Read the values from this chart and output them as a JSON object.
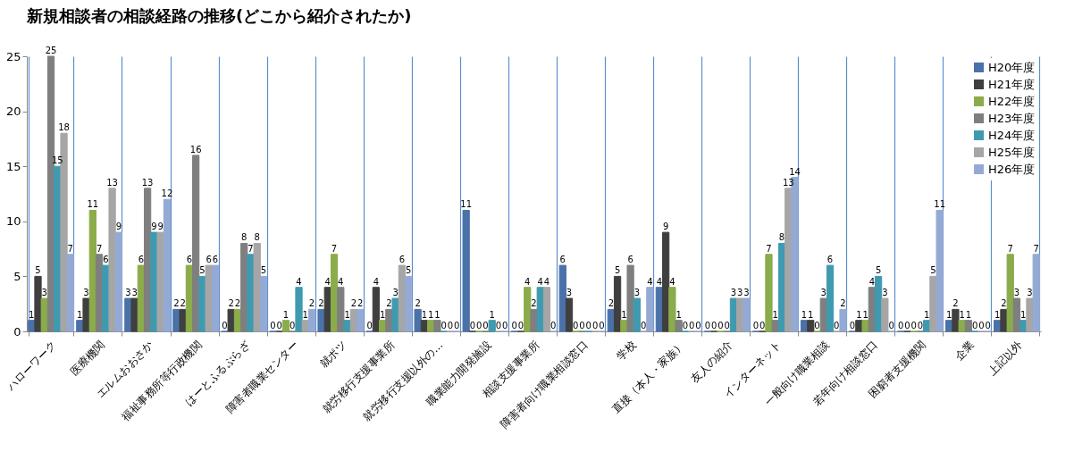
{
  "chart_data": {
    "type": "bar",
    "title": "新規相談者の相談経路の推移(どこから紹介されたか)",
    "categories": [
      "ハローワーク",
      "医療機関",
      "エルムおおさか",
      "福祉事務所等行政機関",
      "はーとふるぷらざ",
      "障害者職業センター",
      "就ポツ",
      "就労移行支援事業所",
      "就労移行支援以外の…",
      "職業能力開発施設",
      "相談支援事業所",
      "障害者向け職業相談窓口",
      "学校",
      "直接（本人・家族）",
      "友人の紹介",
      "インターネット",
      "一般向け職業相談",
      "若年向け相談窓口",
      "困窮者支援機関",
      "企業",
      "上記以外"
    ],
    "series": [
      {
        "name": "H20年度",
        "color": "#4a72a8",
        "values": [
          1,
          1,
          3,
          2,
          0,
          0,
          2,
          0,
          2,
          11,
          0,
          6,
          2,
          4,
          0,
          0,
          1,
          0,
          0,
          1,
          1
        ]
      },
      {
        "name": "H21年度",
        "color": "#3f3f3f",
        "values": [
          5,
          3,
          3,
          2,
          2,
          0,
          4,
          4,
          1,
          0,
          0,
          3,
          5,
          9,
          0,
          0,
          1,
          1,
          0,
          2,
          2
        ]
      },
      {
        "name": "H22年度",
        "color": "#8aac4a",
        "values": [
          3,
          11,
          6,
          6,
          2,
          1,
          7,
          1,
          1,
          0,
          4,
          0,
          1,
          4,
          0,
          7,
          0,
          1,
          0,
          1,
          7
        ]
      },
      {
        "name": "H23年度",
        "color": "#7f7f7f",
        "values": [
          25,
          7,
          13,
          16,
          8,
          0,
          4,
          2,
          1,
          0,
          2,
          0,
          6,
          1,
          0,
          1,
          3,
          4,
          0,
          1,
          3
        ]
      },
      {
        "name": "H24年度",
        "color": "#3f9ab0",
        "values": [
          15,
          6,
          9,
          5,
          7,
          4,
          1,
          3,
          0,
          1,
          4,
          0,
          3,
          0,
          3,
          8,
          6,
          5,
          1,
          0,
          1
        ]
      },
      {
        "name": "H25年度",
        "color": "#a6a6a6",
        "values": [
          18,
          13,
          9,
          6,
          8,
          1,
          2,
          6,
          0,
          0,
          4,
          0,
          0,
          0,
          3,
          13,
          0,
          3,
          5,
          0,
          3
        ]
      },
      {
        "name": "H26年度",
        "color": "#94aad4",
        "values": [
          7,
          9,
          12,
          6,
          5,
          2,
          2,
          5,
          0,
          0,
          0,
          0,
          4,
          0,
          3,
          14,
          2,
          0,
          11,
          0,
          7
        ]
      }
    ],
    "ylim": [
      0,
      25
    ],
    "yticks": [
      0,
      5,
      10,
      15,
      20,
      25
    ],
    "grid": "x",
    "legend": "top right",
    "data_labels": true
  }
}
